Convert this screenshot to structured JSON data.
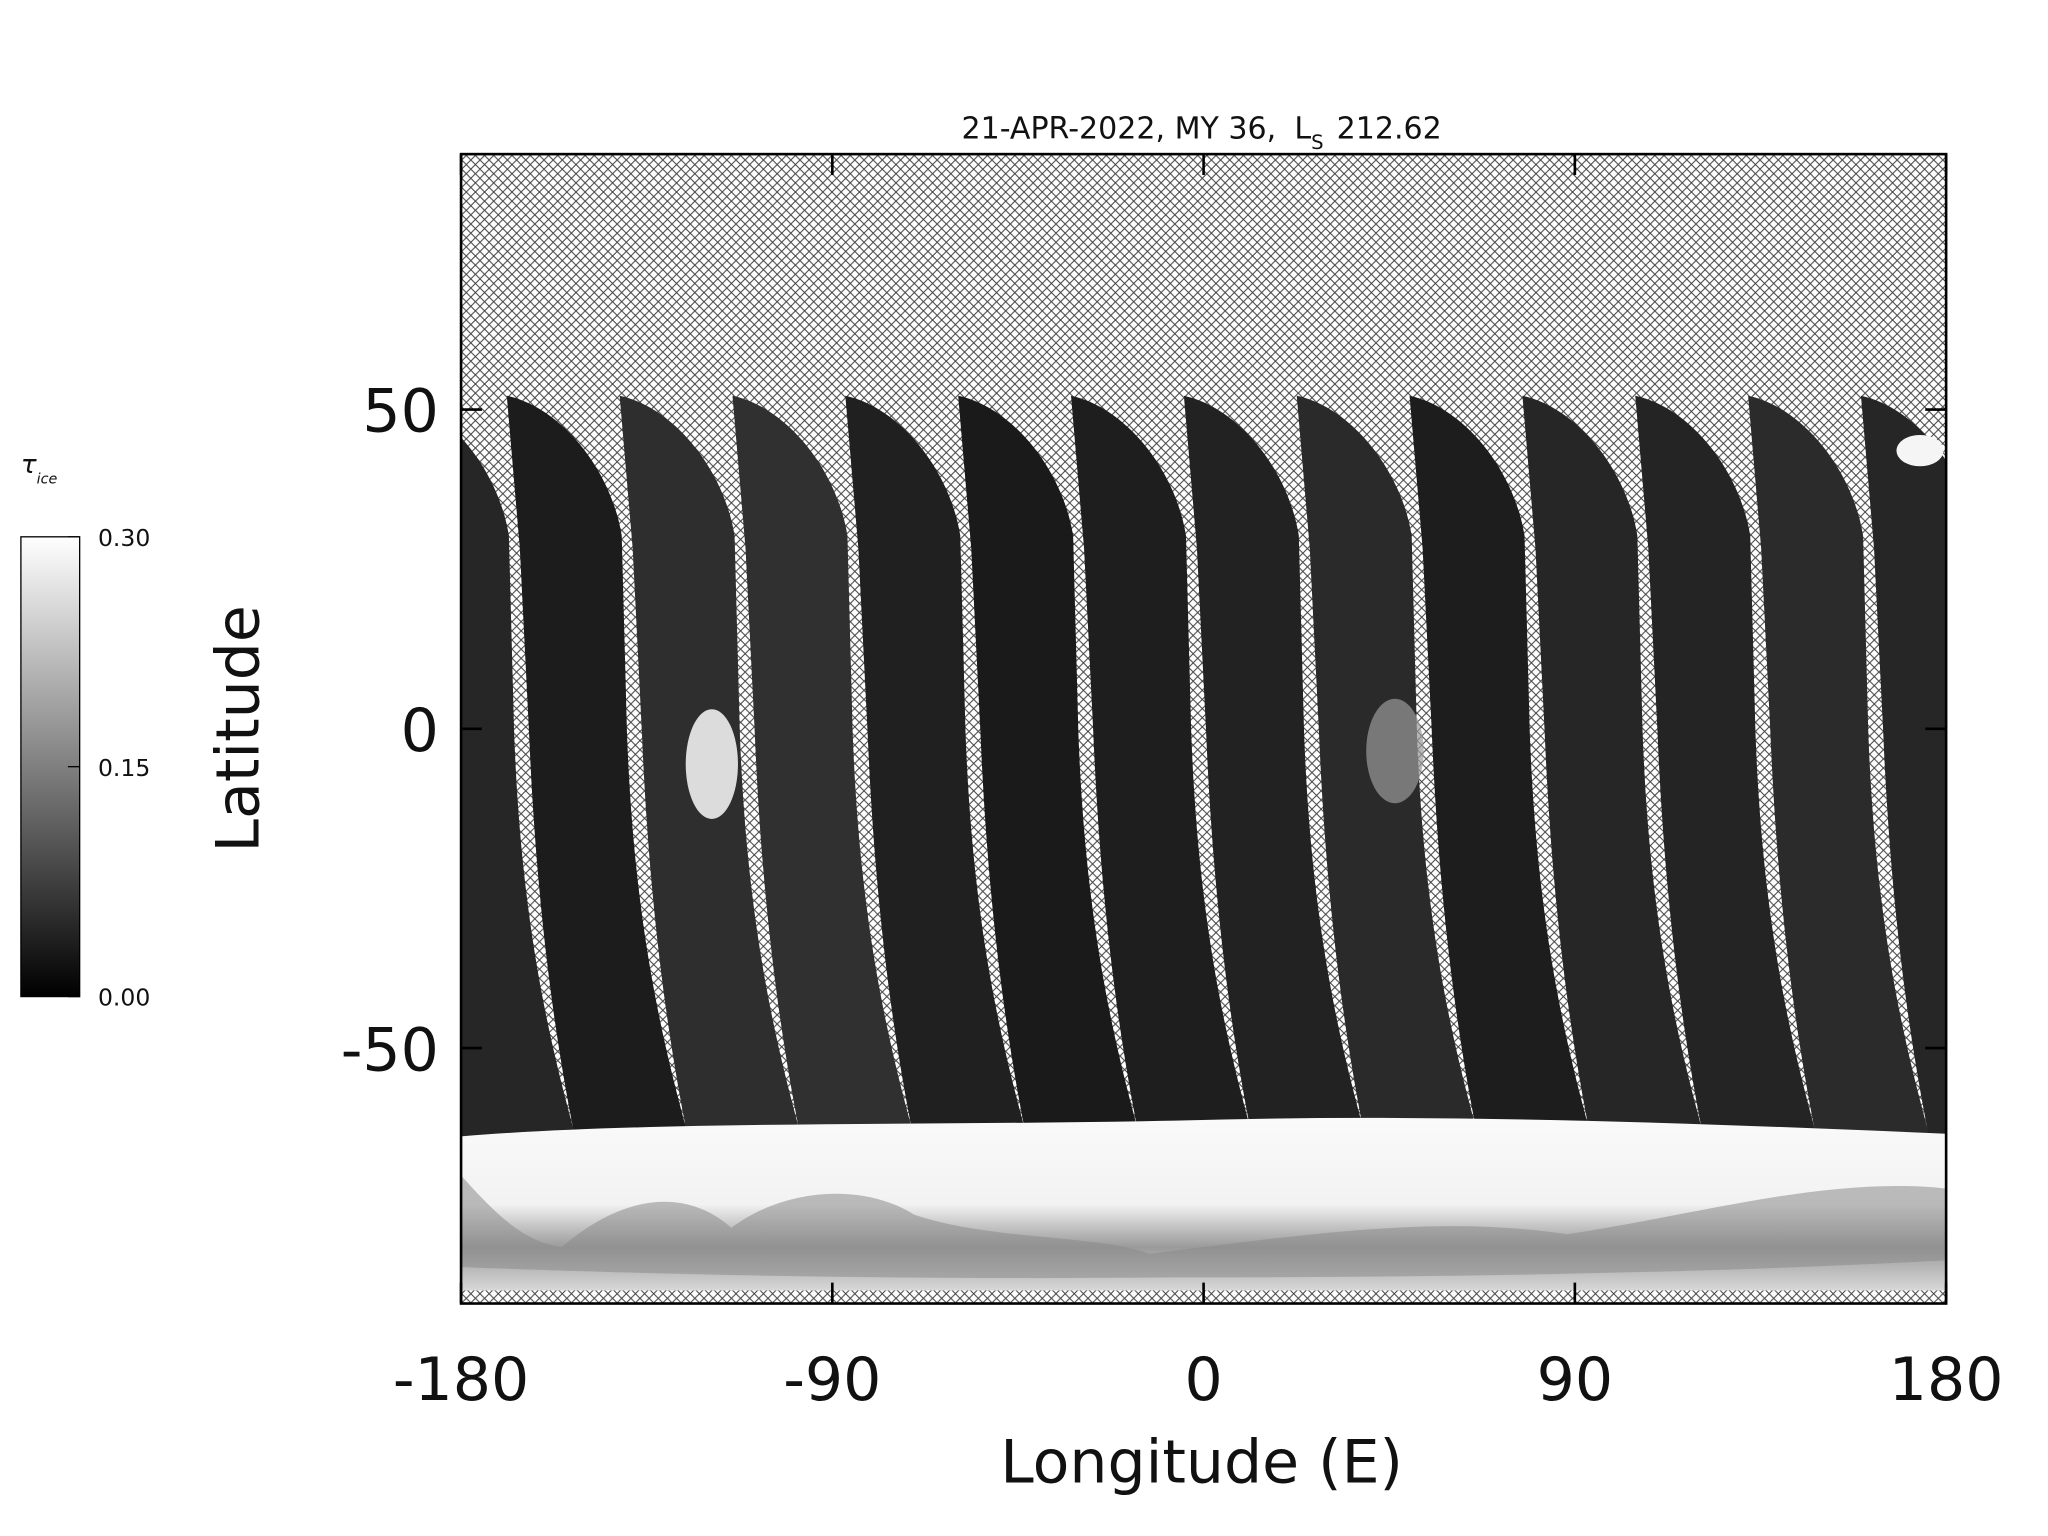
{
  "chart_data": {
    "type": "map",
    "title": "21-APR-2022, MY 36,",
    "ls_label": "L",
    "ls_subscript": "S",
    "ls_value": 212.62,
    "x_label": "Longitude (E)",
    "y_label": "Latitude",
    "xlim": [
      -180,
      180
    ],
    "xticks": [
      -180,
      -90,
      0,
      90,
      180
    ],
    "ylim": [
      -90,
      90
    ],
    "yticks": [
      -50,
      0,
      50
    ],
    "colorbar": {
      "label": "τ",
      "label_subscript": "ice",
      "lim": [
        0,
        0.3
      ],
      "ticks": [
        {
          "value": 0,
          "label": "0.00"
        },
        {
          "value": 0.15,
          "label": "0.15"
        },
        {
          "value": 0.3,
          "label": "0.30"
        }
      ]
    }
  }
}
